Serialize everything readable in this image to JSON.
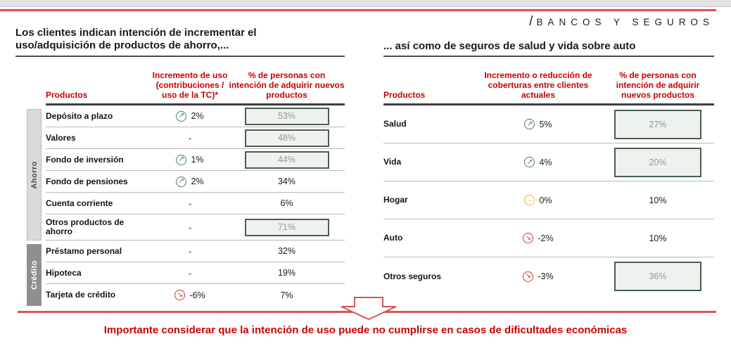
{
  "colors": {
    "accent_red": "#cc0000",
    "line_red": "#d95454",
    "trend_up_green": "#4a7a6a",
    "trend_flat_yellow": "#dfba3f",
    "trend_down_red": "#c0392b",
    "box_fill": "#edf2ee",
    "box_border": "#47604e"
  },
  "logo": {
    "slash": "/",
    "text": "BANCOS Y SEGUROS"
  },
  "left_panel": {
    "title": "Los clientes indican intención de incrementar el\nuso/adquisición de productos de ahorro,...",
    "columns": {
      "product": "Productos",
      "change": "Incremento de uso (contribuciones / uso de la TC)*",
      "intent": "% de personas con intención de adquirir nuevos productos"
    },
    "groups": [
      {
        "label": "Ahorro"
      },
      {
        "label": "Crédito"
      }
    ],
    "rows": [
      {
        "group": "Ahorro",
        "product": "Depósito a plazo",
        "trend": "up",
        "change": "2%",
        "intent": "53%",
        "highlighted": true
      },
      {
        "group": "Ahorro",
        "product": "Valores",
        "trend": "none",
        "change": "-",
        "intent": "48%",
        "highlighted": true
      },
      {
        "group": "Ahorro",
        "product": "Fondo de inversión",
        "trend": "up",
        "change": "1%",
        "intent": "44%",
        "highlighted": true
      },
      {
        "group": "Ahorro",
        "product": "Fondo de pensiones",
        "trend": "up",
        "change": "2%",
        "intent": "34%",
        "highlighted": false
      },
      {
        "group": "Ahorro",
        "product": "Cuenta corriente",
        "trend": "none",
        "change": "-",
        "intent": "6%",
        "highlighted": false
      },
      {
        "group": "Ahorro",
        "product": "Otros productos de ahorro",
        "trend": "none",
        "change": "-",
        "intent": "71%",
        "highlighted": true
      },
      {
        "group": "Crédito",
        "product": "Préstamo personal",
        "trend": "none",
        "change": "-",
        "intent": "32%",
        "highlighted": false
      },
      {
        "group": "Crédito",
        "product": "Hipoteca",
        "trend": "none",
        "change": "-",
        "intent": "19%",
        "highlighted": false
      },
      {
        "group": "Crédito",
        "product": "Tarjeta de crédito",
        "trend": "down",
        "change": "-6%",
        "intent": "7%",
        "highlighted": false
      }
    ]
  },
  "right_panel": {
    "title": "... así como de seguros de salud y vida sobre auto",
    "columns": {
      "product": "Productos",
      "change": "Incremento o reducción de coberturas entre clientes actuales",
      "intent": "% de personas con intención de adquirir nuevos productos"
    },
    "rows": [
      {
        "product": "Salud",
        "trend": "up",
        "change": "5%",
        "intent": "27%",
        "highlighted": true
      },
      {
        "product": "Vida",
        "trend": "up",
        "change": "4%",
        "intent": "20%",
        "highlighted": true
      },
      {
        "product": "Hogar",
        "trend": "flat",
        "change": "0%",
        "intent": "10%",
        "highlighted": false
      },
      {
        "product": "Auto",
        "trend": "down",
        "change": "-2%",
        "intent": "10%",
        "highlighted": false
      },
      {
        "product": "Otros seguros",
        "trend": "down",
        "change": "-3%",
        "intent": "36%",
        "highlighted": true
      }
    ]
  },
  "footer": {
    "message": "Importante considerar que la intención de uso puede no cumplirse en casos de dificultades económicas"
  }
}
